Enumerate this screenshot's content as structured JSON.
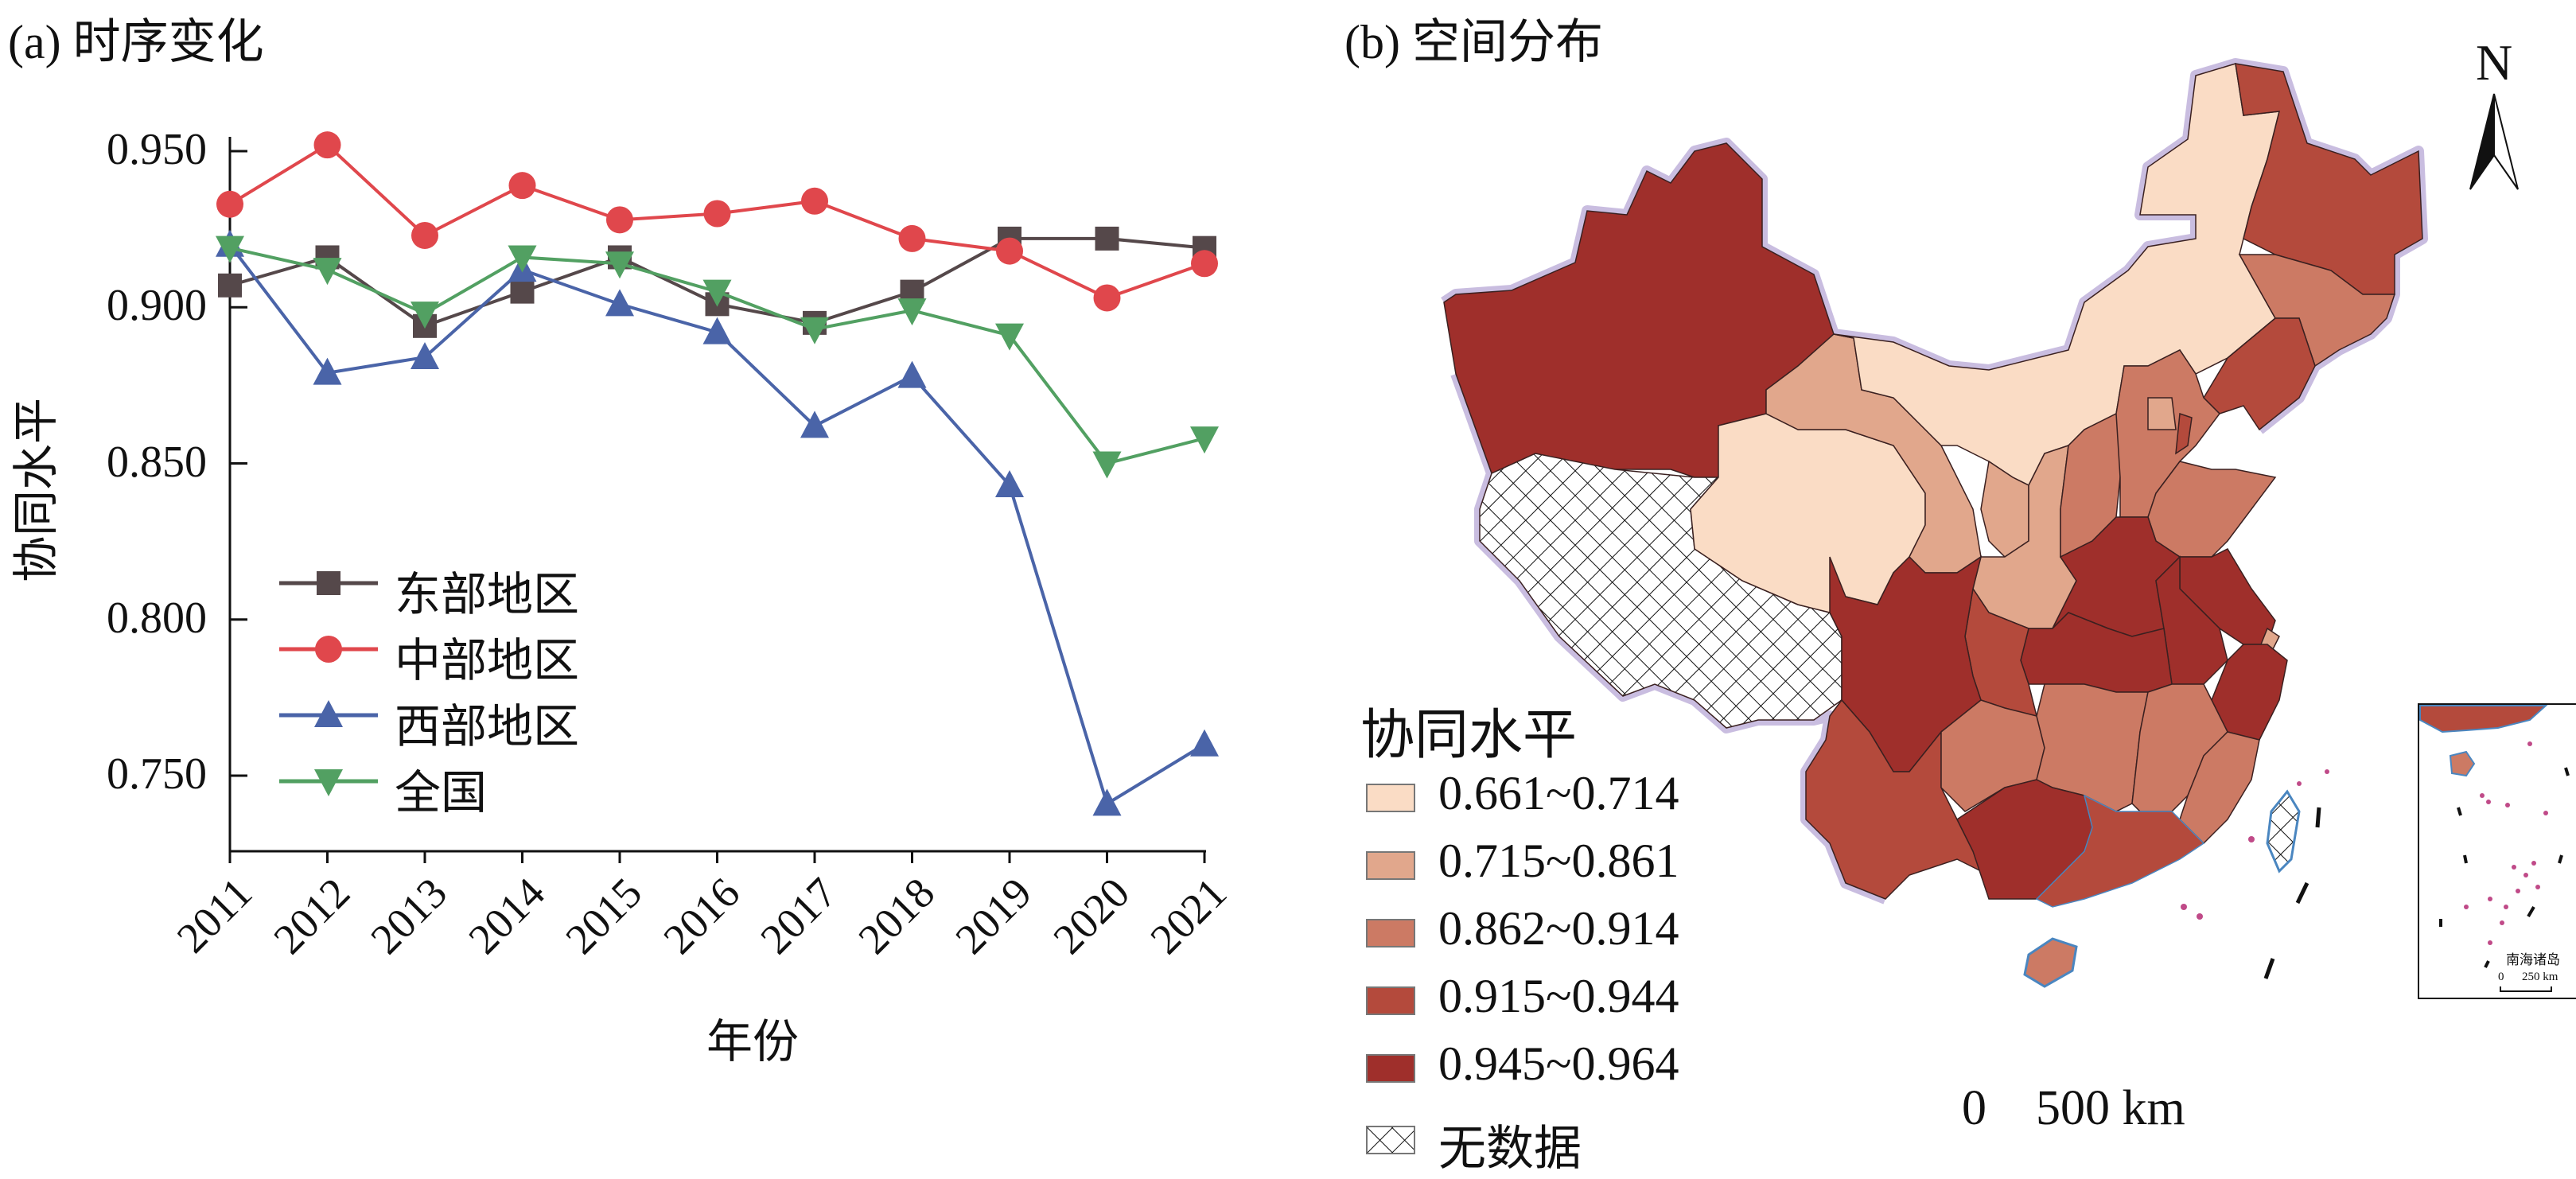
{
  "panel_a_title": "(a) 时序变化",
  "panel_b_title": "(b) 空间分布",
  "chart_data": {
    "type": "line",
    "title": "(a) 时序变化",
    "xlabel": "年份",
    "ylabel": "协同水平",
    "categories": [
      "2011",
      "2012",
      "2013",
      "2014",
      "2015",
      "2016",
      "2017",
      "2018",
      "2019",
      "2020",
      "2021"
    ],
    "ylim": [
      0.726,
      0.954
    ],
    "yticks": [
      "0.950",
      "0.900",
      "0.850",
      "0.800",
      "0.750"
    ],
    "ytick_values": [
      0.95,
      0.9,
      0.85,
      0.8,
      0.75
    ],
    "grid": false,
    "legend_position": "lower-left",
    "series": [
      {
        "name": "东部地区",
        "color": "#55484a",
        "marker": "square",
        "values": [
          0.907,
          0.916,
          0.894,
          0.905,
          0.916,
          0.901,
          0.895,
          0.905,
          0.922,
          0.922,
          0.919
        ]
      },
      {
        "name": "中部地区",
        "color": "#e0474c",
        "marker": "circle",
        "values": [
          0.933,
          0.952,
          0.923,
          0.939,
          0.928,
          0.93,
          0.934,
          0.922,
          0.918,
          0.903,
          0.914
        ]
      },
      {
        "name": "西部地区",
        "color": "#4a64a8",
        "marker": "triangle-up",
        "values": [
          0.92,
          0.879,
          0.884,
          0.912,
          0.901,
          0.892,
          0.862,
          0.878,
          0.843,
          0.741,
          0.76
        ]
      },
      {
        "name": "全国",
        "color": "#52a062",
        "marker": "triangle-down",
        "values": [
          0.919,
          0.912,
          0.898,
          0.916,
          0.914,
          0.905,
          0.893,
          0.899,
          0.891,
          0.85,
          0.858
        ]
      }
    ]
  },
  "map": {
    "legend_title": "协同水平",
    "classes": [
      {
        "label": "0.661~0.714",
        "color": "#fadcc5"
      },
      {
        "label": "0.715~0.861",
        "color": "#e1a78c"
      },
      {
        "label": "0.862~0.914",
        "color": "#cc7a64"
      },
      {
        "label": "0.915~0.944",
        "color": "#b44a3c"
      },
      {
        "label": "0.945~0.964",
        "color": "#9f2f2b"
      }
    ],
    "no_data_label": "无数据",
    "north_label": "N",
    "scale_label": "0    500 km",
    "inset_title": "南海诸岛",
    "inset_scale": "0      250 km"
  }
}
